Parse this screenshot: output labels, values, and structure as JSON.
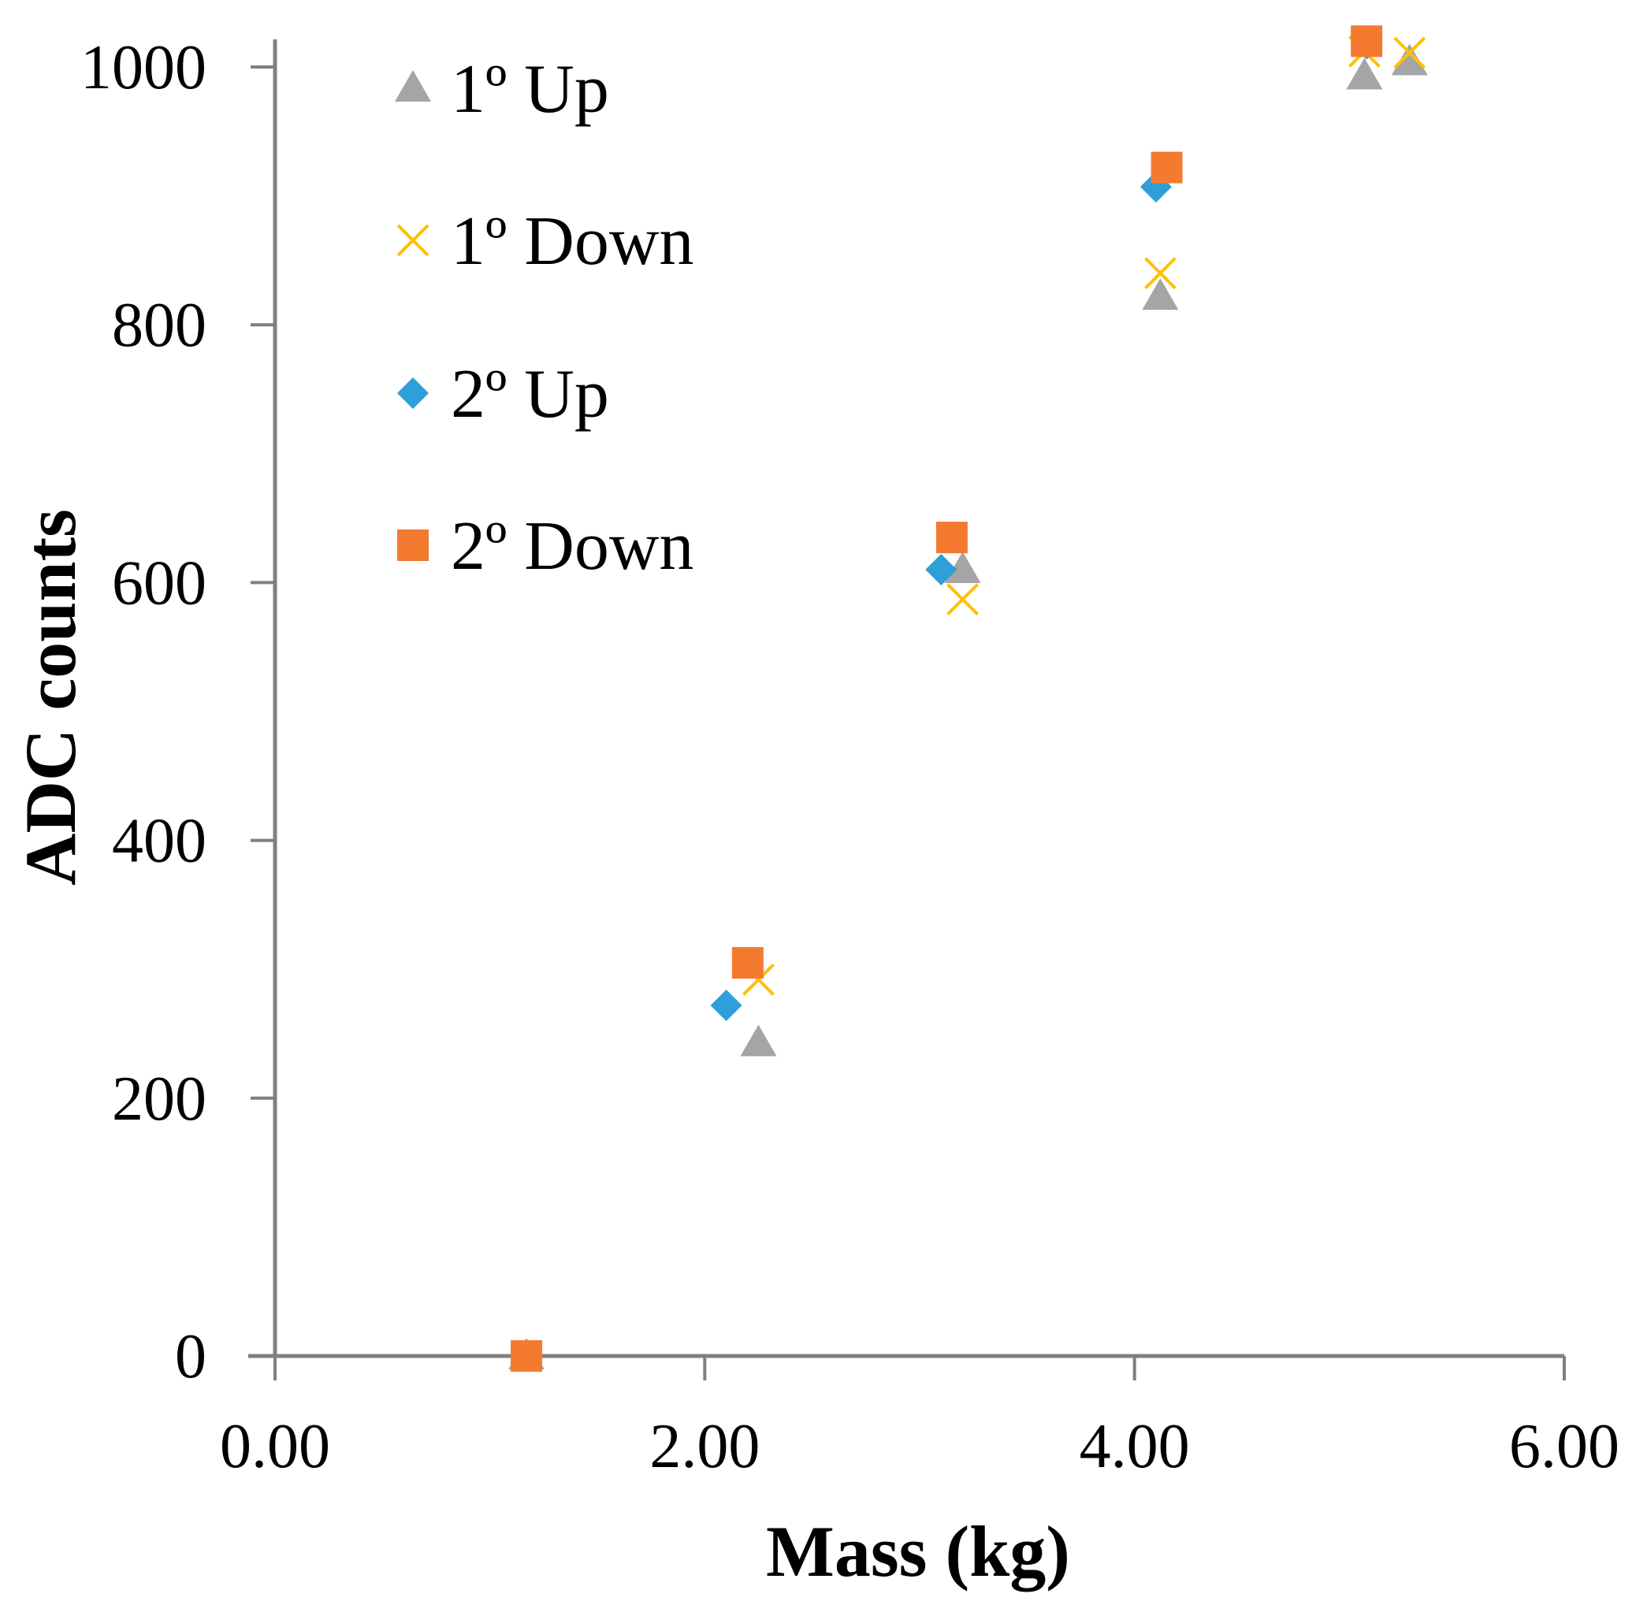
{
  "chart_data": {
    "type": "scatter",
    "title": "",
    "xlabel": "Mass (kg)",
    "ylabel": "ADC counts",
    "xlim": [
      0,
      6
    ],
    "ylim": [
      0,
      1000
    ],
    "x_ticks": [
      0,
      2,
      4,
      6
    ],
    "x_tick_labels": [
      "0.00",
      "2.00",
      "4.00",
      "6.00"
    ],
    "y_ticks": [
      0,
      200,
      400,
      600,
      800,
      1000
    ],
    "y_tick_labels": [
      "0",
      "200",
      "400",
      "600",
      "800",
      "1000"
    ],
    "grid": false,
    "legend_position": "top-left",
    "series": [
      {
        "name": "1º Up",
        "marker": "triangle",
        "color": "#a5a5a5",
        "points": [
          [
            1.17,
            0
          ],
          [
            2.25,
            243
          ],
          [
            3.2,
            610
          ],
          [
            4.12,
            822
          ],
          [
            5.07,
            993
          ],
          [
            5.28,
            1004
          ]
        ]
      },
      {
        "name": "1º Down",
        "marker": "x",
        "color": "#ffc000",
        "points": [
          [
            1.17,
            0
          ],
          [
            2.25,
            292
          ],
          [
            3.2,
            587
          ],
          [
            4.12,
            840
          ],
          [
            5.07,
            1012
          ],
          [
            5.28,
            1011
          ]
        ]
      },
      {
        "name": "2º Up",
        "marker": "diamond",
        "color": "#2e9fd9",
        "points": [
          [
            1.17,
            0
          ],
          [
            2.1,
            272
          ],
          [
            3.1,
            610
          ],
          [
            4.1,
            907
          ],
          [
            5.08,
            1018
          ]
        ]
      },
      {
        "name": "2º Down",
        "marker": "square",
        "color": "#f47a30",
        "points": [
          [
            1.17,
            0
          ],
          [
            2.2,
            305
          ],
          [
            3.15,
            635
          ],
          [
            4.15,
            922
          ],
          [
            5.08,
            1020
          ]
        ]
      }
    ]
  }
}
